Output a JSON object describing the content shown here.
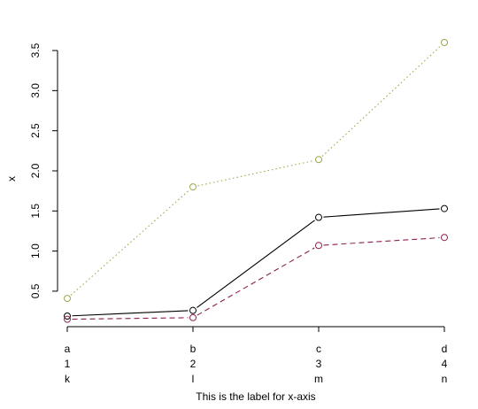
{
  "chart_data": {
    "type": "line",
    "title": "",
    "xlabel": "This is the label for x-axis",
    "ylabel": "x",
    "categories": [
      [
        "a",
        "1",
        "k"
      ],
      [
        "b",
        "2",
        "l"
      ],
      [
        "c",
        "3",
        "m"
      ],
      [
        "d",
        "4",
        "n"
      ]
    ],
    "yticks": [
      0.5,
      1.0,
      1.5,
      2.0,
      2.5,
      3.0,
      3.5
    ],
    "ytick_labels": [
      "0.5",
      "1.0",
      "1.5",
      "2.0",
      "2.5",
      "3.0",
      "3.5"
    ],
    "ylim": [
      0.19,
      3.6
    ],
    "grid": false,
    "legend": "none",
    "series": [
      {
        "values": [
          0.19,
          0.26,
          1.42,
          1.53
        ],
        "color": "#000000",
        "line_style": "solid",
        "marker": "open-circle"
      },
      {
        "values": [
          0.15,
          0.17,
          1.07,
          1.17
        ],
        "color": "#8b2252",
        "line_style": "dashed",
        "marker": "open-circle"
      },
      {
        "values": [
          0.41,
          1.8,
          2.14,
          3.6
        ],
        "color": "#9aa84a",
        "line_style": "dotted",
        "marker": "open-circle"
      }
    ]
  }
}
